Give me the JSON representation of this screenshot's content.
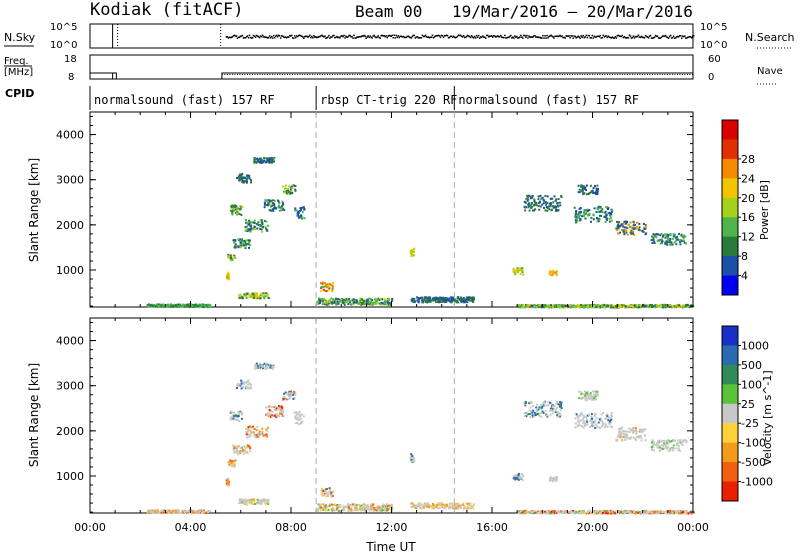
{
  "header": {
    "station": "Kodiak (fitACF)",
    "beam": "Beam 00",
    "date_range": "19/Mar/2016 – 20/Mar/2016"
  },
  "strips": {
    "nsky_label": "N.Sky",
    "nsky_top": "10^5",
    "nsky_bottom": "10^0",
    "nsearch_label": "N.Search",
    "nsearch_top": "10^5",
    "nsearch_bottom": "10^0",
    "freq_label_1": "Freq.",
    "freq_label_2": "[MHz]",
    "freq_top": "18",
    "freq_bottom": "8",
    "nave_label": "Nave",
    "nave_top": "60",
    "nave_bottom": "0",
    "cpid_label": "CPID",
    "modes": [
      {
        "label": "normalsound (fast) 157 RF",
        "start_h": 0,
        "end_h": 9.0
      },
      {
        "label": "rbsp CT-trig 220 RF",
        "start_h": 9.0,
        "end_h": 14.5
      },
      {
        "label": "normalsound (fast) 157 RF",
        "start_h": 14.5,
        "end_h": 24
      }
    ]
  },
  "chart_data": {
    "type": "heatmap",
    "x_label": "Time UT",
    "x_range_h": [
      0,
      24
    ],
    "x_ticks": [
      "00:00",
      "04:00",
      "08:00",
      "12:00",
      "16:00",
      "20:00",
      "00:00"
    ],
    "y_label": "Slant Range [km]",
    "y_range_km": [
      180,
      4500
    ],
    "y_ticks": [
      1000,
      2000,
      3000,
      4000
    ],
    "mode_change_h": [
      9.0,
      14.5
    ],
    "panels": [
      {
        "id": "power",
        "colorbar_label": "Power [dB]",
        "colorbar_ticks": [
          "4",
          "8",
          "12",
          "16",
          "20",
          "24",
          "28"
        ],
        "colors": [
          "#0000ee",
          "#1c4fa8",
          "#2a7a3c",
          "#4db54a",
          "#a6d11a",
          "#f2c500",
          "#f58a00",
          "#e03000",
          "#d80000"
        ]
      },
      {
        "id": "velocity",
        "colorbar_label": "Velocity [m s^-1]",
        "colorbar_ticks": [
          "1000",
          "500",
          "100",
          "25",
          "-25",
          "-100",
          "-500",
          "-1000"
        ],
        "colors": [
          "#1a2fc8",
          "#2a6ab0",
          "#2f8a55",
          "#5cc23a",
          "#c8c8c8",
          "#ffd23a",
          "#f59a1a",
          "#f06010",
          "#e82000"
        ]
      }
    ],
    "echo_regions": [
      {
        "t": 5.45,
        "r": 900,
        "dr": 180,
        "dt": 0.12,
        "c": [
          6,
          5,
          4
        ]
      },
      {
        "t": 5.6,
        "r": 1300,
        "dr": 140,
        "dt": 0.3,
        "c": [
          5,
          4,
          3,
          2
        ]
      },
      {
        "t": 6.0,
        "r": 1600,
        "dr": 200,
        "dt": 0.7,
        "c": [
          3,
          2,
          4,
          1
        ]
      },
      {
        "t": 6.6,
        "r": 2000,
        "dr": 260,
        "dt": 0.9,
        "c": [
          2,
          1,
          3,
          4
        ]
      },
      {
        "t": 7.3,
        "r": 2450,
        "dr": 250,
        "dt": 0.8,
        "c": [
          1,
          2,
          3
        ]
      },
      {
        "t": 7.9,
        "r": 2800,
        "dr": 200,
        "dt": 0.5,
        "c": [
          1,
          2,
          4
        ]
      },
      {
        "t": 5.8,
        "r": 2350,
        "dr": 220,
        "dt": 0.5,
        "c": [
          2,
          3,
          4
        ]
      },
      {
        "t": 6.9,
        "r": 3450,
        "dr": 120,
        "dt": 0.8,
        "c": [
          1,
          2
        ]
      },
      {
        "t": 6.1,
        "r": 3050,
        "dr": 200,
        "dt": 0.6,
        "c": [
          1,
          2
        ]
      },
      {
        "t": 8.3,
        "r": 2300,
        "dr": 300,
        "dt": 0.4,
        "c": [
          1,
          3
        ]
      },
      {
        "t": 6.5,
        "r": 450,
        "dr": 120,
        "dt": 1.2,
        "c": [
          2,
          3,
          4,
          5
        ]
      },
      {
        "t": 9.4,
        "r": 650,
        "dr": 200,
        "dt": 0.5,
        "c": [
          6,
          5,
          7,
          3
        ]
      },
      {
        "t": 10.5,
        "r": 320,
        "dr": 150,
        "dt": 3.0,
        "c": [
          1,
          2,
          3,
          4
        ]
      },
      {
        "t": 14.0,
        "r": 360,
        "dr": 120,
        "dt": 2.5,
        "c": [
          1,
          2
        ]
      },
      {
        "t": 12.8,
        "r": 1420,
        "dr": 180,
        "dt": 0.15,
        "c": [
          4,
          5
        ]
      },
      {
        "t": 17.0,
        "r": 1000,
        "dr": 150,
        "dt": 0.4,
        "c": [
          3,
          4,
          5
        ]
      },
      {
        "t": 18.4,
        "r": 950,
        "dr": 120,
        "dt": 0.3,
        "c": [
          6,
          5
        ]
      },
      {
        "t": 18.0,
        "r": 2500,
        "dr": 350,
        "dt": 1.5,
        "c": [
          1,
          2
        ]
      },
      {
        "t": 20.0,
        "r": 2250,
        "dr": 350,
        "dt": 1.5,
        "c": [
          1,
          2,
          3
        ]
      },
      {
        "t": 21.5,
        "r": 1950,
        "dr": 300,
        "dt": 1.2,
        "c": [
          1,
          2,
          6
        ]
      },
      {
        "t": 23.0,
        "r": 1700,
        "dr": 250,
        "dt": 1.4,
        "c": [
          1,
          2,
          3
        ]
      },
      {
        "t": 19.8,
        "r": 2800,
        "dr": 200,
        "dt": 0.8,
        "c": [
          1,
          2
        ]
      },
      {
        "t": 20.5,
        "r": 220,
        "dr": 60,
        "dt": 7,
        "c": [
          1,
          2,
          3,
          4,
          5
        ]
      },
      {
        "t": 3.5,
        "r": 230,
        "dr": 60,
        "dt": 2.5,
        "c": [
          2,
          3
        ]
      }
    ]
  }
}
